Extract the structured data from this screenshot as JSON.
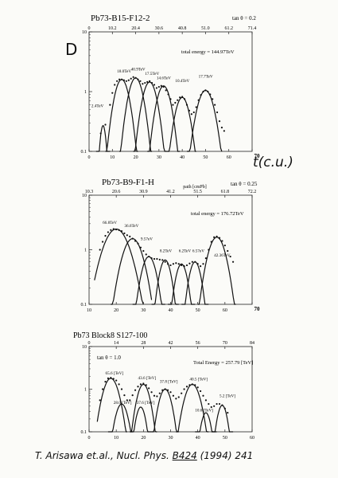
{
  "annotations": {
    "panel_letter": "D",
    "t_label": "t(c.u.)",
    "citation": {
      "authors": "T. Arisawa et.al.,",
      "journal": "Nucl. Phys.",
      "volume": "B424",
      "year_pages": "(1994) 241"
    }
  },
  "chart_data": [
    {
      "type": "scatter",
      "title": "Pb73-B15-F12-2",
      "tan_label": "tan θ = 0.2",
      "total_label": "total energy = 144.97TeV",
      "yscale": "log",
      "xlim": [
        0,
        70
      ],
      "ylim": [
        0.1,
        10
      ],
      "x_ticks": [
        "0",
        "10",
        "20",
        "30",
        "40",
        "50",
        "60",
        "70"
      ],
      "x_ticks_shown": [
        "0",
        "10",
        "20",
        "30",
        "40",
        "50",
        "60"
      ],
      "x_last_label": "70",
      "y_ticks": [
        "10",
        "1",
        "0.1"
      ],
      "top_ticks": [
        "0",
        "10.2",
        "20.4",
        "30.6",
        "40.8",
        "51.0",
        "61.2",
        "71.4"
      ],
      "peak_labels": [
        {
          "text": "2.4TeV",
          "x": 1,
          "y": 0.55
        },
        {
          "text": "18.0TeV",
          "x": 12,
          "y": 2.1
        },
        {
          "text": "40.9TeV",
          "x": 18,
          "y": 2.25
        },
        {
          "text": "17.5TeV",
          "x": 24,
          "y": 1.9
        },
        {
          "text": "14.6TeV",
          "x": 29,
          "y": 1.6
        },
        {
          "text": "10.4TeV",
          "x": 37,
          "y": 1.45
        },
        {
          "text": "17.7TeV",
          "x": 47,
          "y": 1.7
        }
      ],
      "curves": [
        {
          "peak_x": 6,
          "peak_y": 0.27,
          "x": [
            3,
            9
          ]
        },
        {
          "peak_x": 14,
          "peak_y": 1.6,
          "x": [
            7,
            21
          ]
        },
        {
          "peak_x": 20,
          "peak_y": 1.7,
          "x": [
            13,
            27
          ]
        },
        {
          "peak_x": 26,
          "peak_y": 1.45,
          "x": [
            19,
            33
          ]
        },
        {
          "peak_x": 32,
          "peak_y": 1.25,
          "x": [
            25,
            39
          ]
        },
        {
          "peak_x": 40,
          "peak_y": 0.8,
          "x": [
            33,
            46
          ]
        },
        {
          "peak_x": 50,
          "peak_y": 1.05,
          "x": [
            42,
            57
          ]
        }
      ],
      "points": [
        [
          5,
          0.2
        ],
        [
          7,
          0.28
        ],
        [
          9,
          0.6
        ],
        [
          10,
          0.95
        ],
        [
          11,
          1.3
        ],
        [
          12,
          1.5
        ],
        [
          13,
          1.6
        ],
        [
          14,
          1.6
        ],
        [
          15,
          1.55
        ],
        [
          16,
          1.5
        ],
        [
          17,
          1.55
        ],
        [
          18,
          1.65
        ],
        [
          19,
          1.75
        ],
        [
          20,
          1.7
        ],
        [
          21,
          1.6
        ],
        [
          22,
          1.5
        ],
        [
          23,
          1.35
        ],
        [
          24,
          1.4
        ],
        [
          25,
          1.45
        ],
        [
          26,
          1.5
        ],
        [
          27,
          1.4
        ],
        [
          28,
          1.3
        ],
        [
          29,
          1.15
        ],
        [
          30,
          1.2
        ],
        [
          31,
          1.25
        ],
        [
          32,
          1.2
        ],
        [
          33,
          1.05
        ],
        [
          34,
          0.9
        ],
        [
          35,
          0.75
        ],
        [
          36,
          0.6
        ],
        [
          37,
          0.65
        ],
        [
          38,
          0.72
        ],
        [
          39,
          0.8
        ],
        [
          40,
          0.82
        ],
        [
          41,
          0.75
        ],
        [
          42,
          0.6
        ],
        [
          43,
          0.48
        ],
        [
          44,
          0.42
        ],
        [
          45,
          0.45
        ],
        [
          46,
          0.55
        ],
        [
          47,
          0.72
        ],
        [
          48,
          0.88
        ],
        [
          49,
          1.0
        ],
        [
          50,
          1.05
        ],
        [
          51,
          1.0
        ],
        [
          52,
          0.9
        ],
        [
          53,
          0.75
        ],
        [
          54,
          0.6
        ],
        [
          55,
          0.45
        ],
        [
          56,
          0.32
        ],
        [
          57,
          0.25
        ],
        [
          58,
          0.22
        ]
      ]
    },
    {
      "type": "scatter",
      "title": "Pb73-B9-F1-H",
      "tan_label": "tan θ = 0.25",
      "total_label": "total energy = 176.72TeV",
      "top_axis_label": "path [cmPb]",
      "yscale": "log",
      "xlim": [
        10,
        70
      ],
      "ylim": [
        0.1,
        10
      ],
      "x_ticks": [
        "10",
        "20",
        "30",
        "40",
        "50",
        "60",
        "70"
      ],
      "x_ticks_shown": [
        "10",
        "20",
        "30",
        "40",
        "50",
        "60"
      ],
      "x_last_label": "70",
      "y_ticks": [
        "10",
        "1",
        "0.1"
      ],
      "top_ticks": [
        "10.3",
        "20.6",
        "30.9",
        "41.2",
        "51.5",
        "61.8",
        "72.2"
      ],
      "peak_labels": [
        {
          "text": "66.8TeV",
          "x": 15,
          "y": 3.0
        },
        {
          "text": "36.6TeV",
          "x": 23,
          "y": 2.6
        },
        {
          "text": "9.57eV",
          "x": 29,
          "y": 1.5
        },
        {
          "text": "8.2TeV",
          "x": 36,
          "y": 0.9
        },
        {
          "text": "6.2TeV",
          "x": 43,
          "y": 0.9
        },
        {
          "text": "6.57eV",
          "x": 48,
          "y": 0.9
        },
        {
          "text": "42.36TeV",
          "x": 56,
          "y": 0.75
        }
      ],
      "curves": [
        {
          "peak_x": 20,
          "peak_y": 2.4,
          "x": [
            12,
            30
          ]
        },
        {
          "peak_x": 26,
          "peak_y": 1.6,
          "x": [
            18,
            33
          ]
        },
        {
          "peak_x": 32,
          "peak_y": 0.75,
          "x": [
            26,
            38
          ]
        },
        {
          "peak_x": 38,
          "peak_y": 0.65,
          "x": [
            33,
            43
          ]
        },
        {
          "peak_x": 44,
          "peak_y": 0.55,
          "x": [
            39,
            49
          ]
        },
        {
          "peak_x": 49,
          "peak_y": 0.6,
          "x": [
            44,
            54
          ]
        },
        {
          "peak_x": 57,
          "peak_y": 1.7,
          "x": [
            50,
            64
          ]
        }
      ],
      "points": [
        [
          14,
          1.0
        ],
        [
          15,
          1.4
        ],
        [
          16,
          1.8
        ],
        [
          17,
          2.1
        ],
        [
          18,
          2.3
        ],
        [
          19,
          2.4
        ],
        [
          20,
          2.35
        ],
        [
          21,
          2.3
        ],
        [
          22,
          2.2
        ],
        [
          23,
          2.0
        ],
        [
          24,
          1.85
        ],
        [
          25,
          1.75
        ],
        [
          26,
          1.6
        ],
        [
          27,
          1.45
        ],
        [
          28,
          1.3
        ],
        [
          29,
          1.1
        ],
        [
          30,
          0.95
        ],
        [
          31,
          0.82
        ],
        [
          32,
          0.75
        ],
        [
          33,
          0.7
        ],
        [
          34,
          0.68
        ],
        [
          35,
          0.68
        ],
        [
          36,
          0.66
        ],
        [
          37,
          0.65
        ],
        [
          38,
          0.6
        ],
        [
          39,
          0.55
        ],
        [
          40,
          0.52
        ],
        [
          41,
          0.55
        ],
        [
          42,
          0.57
        ],
        [
          43,
          0.55
        ],
        [
          44,
          0.52
        ],
        [
          45,
          0.5
        ],
        [
          46,
          0.52
        ],
        [
          47,
          0.56
        ],
        [
          48,
          0.6
        ],
        [
          49,
          0.6
        ],
        [
          50,
          0.55
        ],
        [
          51,
          0.5
        ],
        [
          52,
          0.55
        ],
        [
          53,
          0.7
        ],
        [
          54,
          1.0
        ],
        [
          55,
          1.4
        ],
        [
          56,
          1.7
        ],
        [
          57,
          1.75
        ],
        [
          58,
          1.65
        ],
        [
          59,
          1.45
        ],
        [
          60,
          1.2
        ],
        [
          61,
          0.95
        ],
        [
          62,
          0.75
        ],
        [
          63,
          0.6
        ]
      ]
    },
    {
      "type": "scatter",
      "title": "Pb73 Block8 S127-100",
      "tan_label": "tan θ = 1.0",
      "total_label": "Total Energy = 257.79 [TeV]",
      "yscale": "log",
      "xlim": [
        0,
        60
      ],
      "ylim": [
        0.1,
        10
      ],
      "x_ticks": [
        "0",
        "10",
        "20",
        "30",
        "40",
        "50",
        "60"
      ],
      "y_ticks": [
        "10",
        "1",
        "0.1"
      ],
      "top_ticks": [
        "0",
        "14",
        "28",
        "42",
        "56",
        "70",
        "84"
      ],
      "peak_labels": [
        {
          "text": "65.6 [TeV]",
          "x": 6,
          "y": 2.2
        },
        {
          "text": "28.0 [TeV]",
          "x": 9,
          "y": 0.45
        },
        {
          "text": "43.6 [TeV]",
          "x": 18,
          "y": 1.7
        },
        {
          "text": "37.6 [TeV]",
          "x": 17.5,
          "y": 0.45
        },
        {
          "text": "37.8 [TeV]",
          "x": 26,
          "y": 1.4
        },
        {
          "text": "40.5 [TeV]",
          "x": 37,
          "y": 1.6
        },
        {
          "text": "10.6 [TeV]",
          "x": 39,
          "y": 0.3
        },
        {
          "text": "5.2 [TeV]",
          "x": 48,
          "y": 0.65
        }
      ],
      "curves": [
        {
          "peak_x": 8,
          "peak_y": 1.8,
          "x": [
            3,
            14
          ]
        },
        {
          "peak_x": 12,
          "peak_y": 0.45,
          "x": [
            7,
            16
          ]
        },
        {
          "peak_x": 20,
          "peak_y": 1.3,
          "x": [
            15,
            25
          ]
        },
        {
          "peak_x": 19,
          "peak_y": 0.38,
          "x": [
            15,
            23
          ]
        },
        {
          "peak_x": 28,
          "peak_y": 1.0,
          "x": [
            23,
            33
          ]
        },
        {
          "peak_x": 38,
          "peak_y": 1.3,
          "x": [
            32,
            44
          ]
        },
        {
          "peak_x": 43,
          "peak_y": 0.28,
          "x": [
            39,
            47
          ]
        },
        {
          "peak_x": 49,
          "peak_y": 0.42,
          "x": [
            45,
            53
          ]
        }
      ],
      "points": [
        [
          4,
          0.55
        ],
        [
          5,
          1.0
        ],
        [
          6,
          1.5
        ],
        [
          7,
          1.8
        ],
        [
          8,
          1.85
        ],
        [
          9,
          1.75
        ],
        [
          10,
          1.6
        ],
        [
          11,
          1.3
        ],
        [
          12,
          1.0
        ],
        [
          13,
          0.72
        ],
        [
          14,
          0.55
        ],
        [
          15,
          0.55
        ],
        [
          16,
          0.72
        ],
        [
          17,
          0.95
        ],
        [
          18,
          1.15
        ],
        [
          19,
          1.3
        ],
        [
          20,
          1.35
        ],
        [
          21,
          1.25
        ],
        [
          22,
          1.05
        ],
        [
          23,
          0.85
        ],
        [
          24,
          0.7
        ],
        [
          25,
          0.68
        ],
        [
          26,
          0.8
        ],
        [
          27,
          0.95
        ],
        [
          28,
          1.0
        ],
        [
          29,
          0.95
        ],
        [
          30,
          0.85
        ],
        [
          31,
          0.7
        ],
        [
          32,
          0.6
        ],
        [
          33,
          0.65
        ],
        [
          34,
          0.8
        ],
        [
          35,
          1.0
        ],
        [
          36,
          1.15
        ],
        [
          37,
          1.25
        ],
        [
          38,
          1.3
        ],
        [
          39,
          1.25
        ],
        [
          40,
          1.1
        ],
        [
          41,
          0.9
        ],
        [
          42,
          0.7
        ],
        [
          43,
          0.55
        ],
        [
          44,
          0.45
        ],
        [
          45,
          0.38
        ],
        [
          46,
          0.4
        ],
        [
          47,
          0.45
        ],
        [
          48,
          0.45
        ],
        [
          49,
          0.42
        ],
        [
          50,
          0.35
        ],
        [
          51,
          0.28
        ]
      ]
    }
  ]
}
